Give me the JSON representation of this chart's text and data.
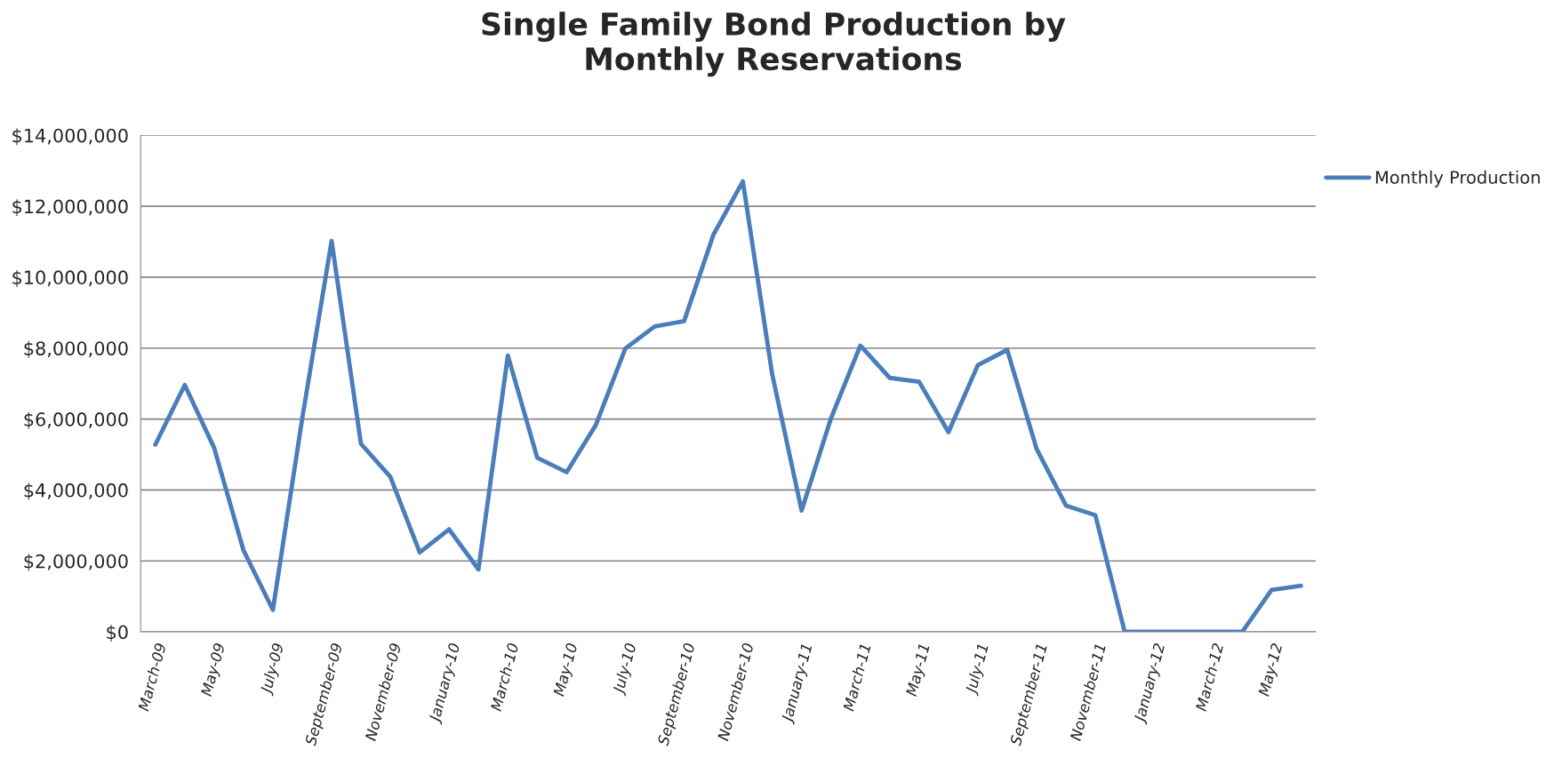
{
  "chart_data": {
    "type": "line",
    "title": "Single Family Bond Production by\nMonthly Reservations",
    "categories": [
      "March-09",
      null,
      "May-09",
      null,
      "July-09",
      null,
      "September-09",
      null,
      "November-09",
      null,
      "January-10",
      null,
      "March-10",
      null,
      "May-10",
      null,
      "July-10",
      null,
      "September-10",
      null,
      "November-10",
      null,
      "January-11",
      null,
      "March-11",
      null,
      "May-11",
      null,
      "July-11",
      null,
      "September-11",
      null,
      "November-11",
      null,
      "January-12",
      null,
      "March-12",
      null,
      "May-12",
      null
    ],
    "series": [
      {
        "name": "Monthly Production",
        "color": "#4a7ebb",
        "values": [
          5280000,
          6960000,
          5190000,
          2300000,
          620000,
          6020000,
          11020000,
          5300000,
          4370000,
          2240000,
          2890000,
          1760000,
          7790000,
          4910000,
          4500000,
          5840000,
          7990000,
          8610000,
          8760000,
          11200000,
          12700000,
          7260000,
          3420000,
          6020000,
          8070000,
          7160000,
          7050000,
          5630000,
          7520000,
          7950000,
          5160000,
          3560000,
          3290000,
          0,
          0,
          0,
          0,
          0,
          1180000,
          1300000
        ]
      }
    ],
    "ylim": [
      0,
      14000000
    ],
    "yticks": [
      {
        "value": 0,
        "label": "$0"
      },
      {
        "value": 2000000,
        "label": "$2,000,000"
      },
      {
        "value": 4000000,
        "label": "$4,000,000"
      },
      {
        "value": 6000000,
        "label": "$6,000,000"
      },
      {
        "value": 8000000,
        "label": "$8,000,000"
      },
      {
        "value": 10000000,
        "label": "$10,000,000"
      },
      {
        "value": 12000000,
        "label": "$12,000,000"
      },
      {
        "value": 14000000,
        "label": "$14,000,000"
      }
    ],
    "grid": "y",
    "legend": "right",
    "marker": "none",
    "line_style": "solid"
  }
}
